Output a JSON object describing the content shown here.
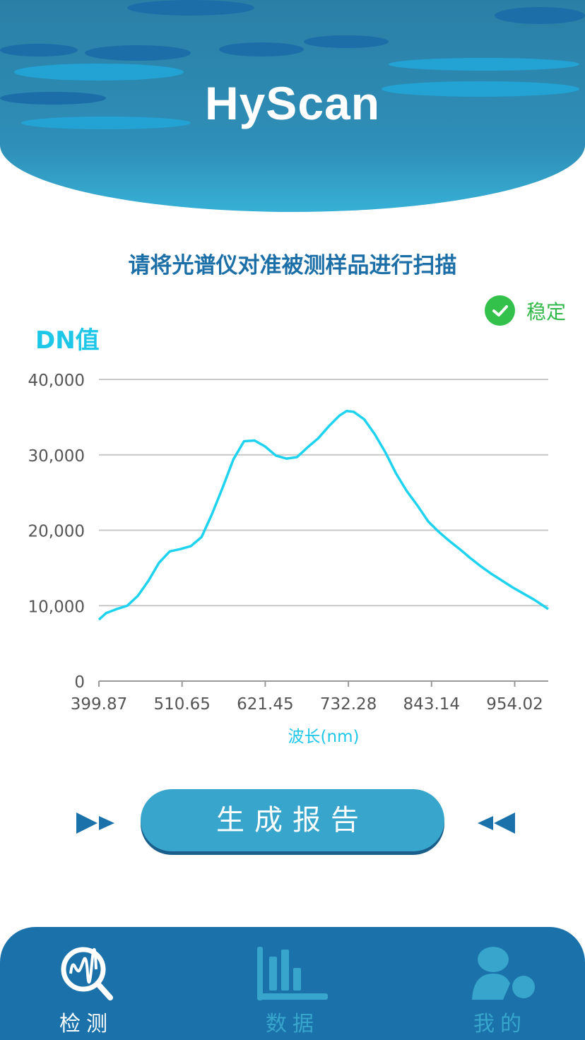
{
  "app": {
    "title": "HyScan"
  },
  "main": {
    "prompt": "请将光谱仪对准被测样品进行扫描",
    "status_label": "稳定",
    "status_color": "#33c14b",
    "generate_report_label": "生成报告"
  },
  "chart_data": {
    "type": "line",
    "ylabel": "DN值",
    "xlabel": "波长(nm)",
    "xlim": [
      399.87,
      998
    ],
    "ylim": [
      0,
      40000
    ],
    "x_ticks": [
      "399.87",
      "510.65",
      "621.45",
      "732.28",
      "843.14",
      "954.02"
    ],
    "y_ticks": [
      "0",
      "10,000",
      "20,000",
      "30,000",
      "40,000"
    ],
    "grid": true,
    "line_color": "#1ed3f0",
    "x": [
      399.9,
      409.3,
      423.4,
      437.6,
      451.7,
      465.8,
      480.0,
      494.1,
      508.2,
      522.3,
      536.5,
      550.6,
      564.7,
      578.8,
      593.0,
      607.1,
      621.2,
      635.4,
      649.5,
      663.6,
      677.7,
      691.9,
      706.0,
      720.1,
      729.5,
      739.0,
      753.1,
      767.2,
      781.3,
      795.5,
      809.6,
      823.7,
      837.9,
      852.0,
      866.1,
      880.2,
      894.4,
      908.5,
      922.6,
      936.8,
      950.9,
      965.0,
      979.1,
      998.0
    ],
    "y": [
      8150,
      9000,
      9550,
      10000,
      11300,
      13300,
      15700,
      17200,
      17500,
      17900,
      19100,
      22200,
      25700,
      29400,
      31800,
      31900,
      31100,
      29900,
      29500,
      29700,
      31000,
      32200,
      33800,
      35200,
      35800,
      35700,
      34700,
      32700,
      30300,
      27500,
      25200,
      23300,
      21200,
      19800,
      18600,
      17500,
      16300,
      15200,
      14200,
      13300,
      12400,
      11600,
      10800,
      9550
    ]
  },
  "nav": {
    "items": [
      {
        "label": "检测",
        "icon": "spectrum-search-icon",
        "active": true
      },
      {
        "label": "数据",
        "icon": "bar-chart-icon",
        "active": false
      },
      {
        "label": "我的",
        "icon": "user-icon",
        "active": false
      }
    ],
    "active_color": "#ffffff",
    "inactive_color": "#37a5cc"
  }
}
